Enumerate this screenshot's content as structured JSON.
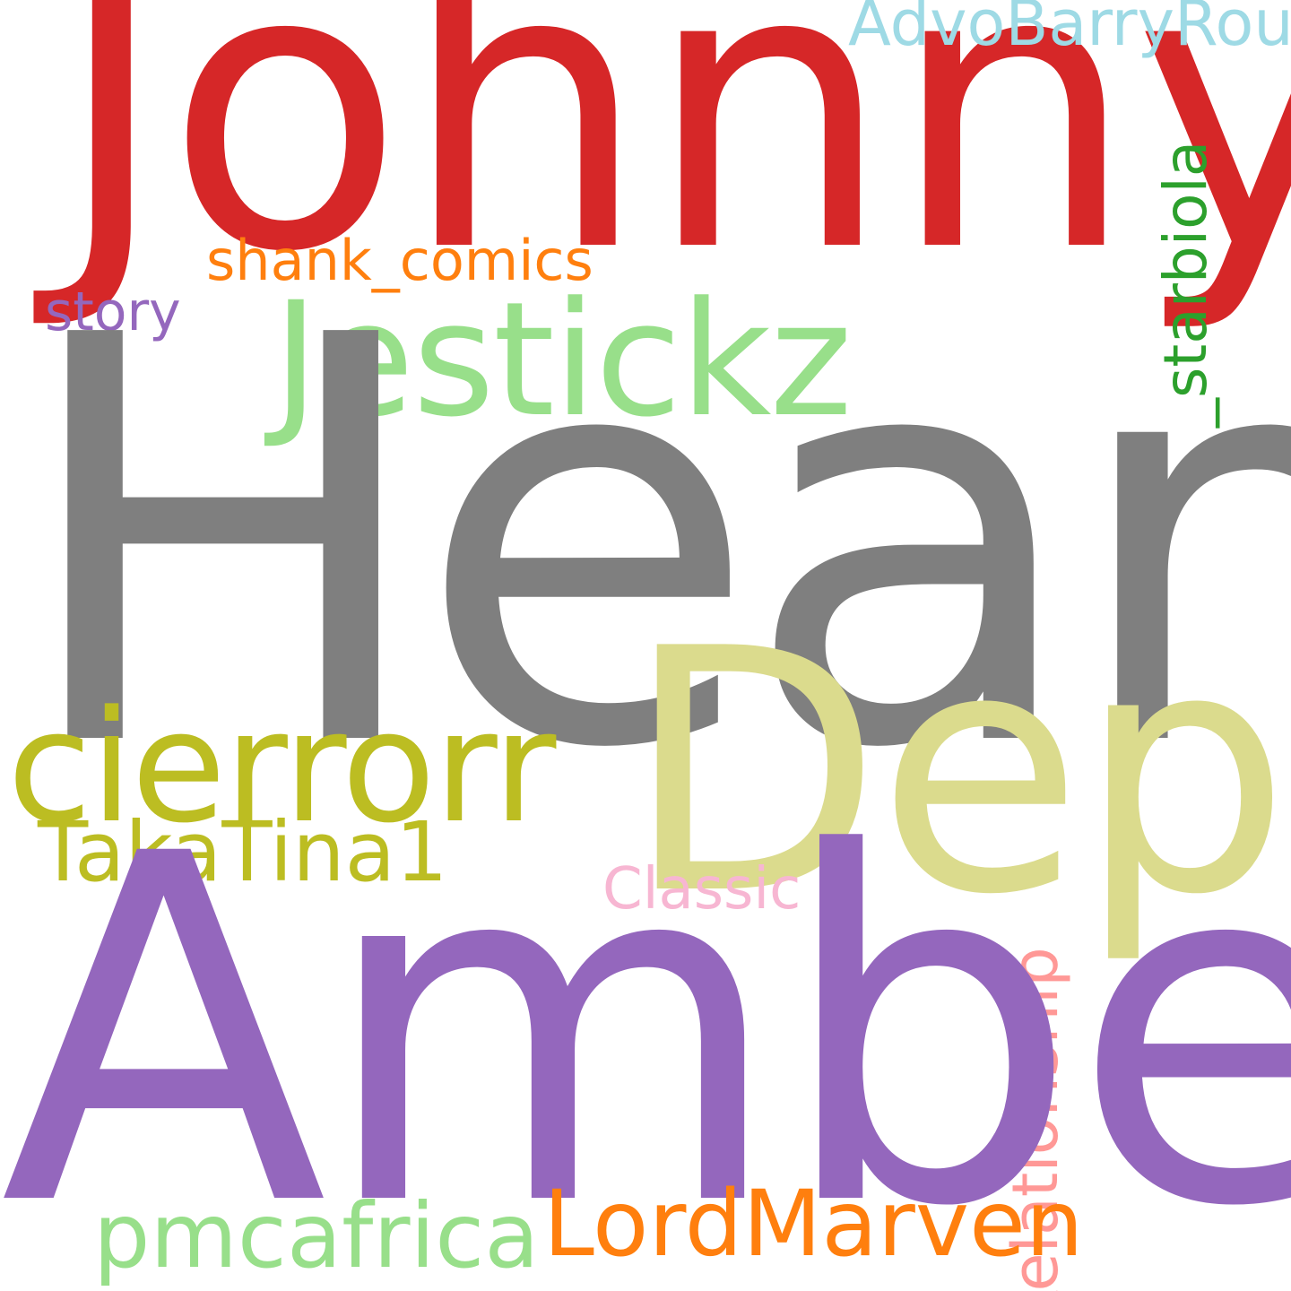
{
  "words": {
    "heard": {
      "text": "Heard",
      "color": "#7f7f7f"
    },
    "amber": {
      "text": "Amber",
      "color": "#9467bd"
    },
    "johnny": {
      "text": "Johnny",
      "color": "#d62728"
    },
    "depp": {
      "text": "Depp",
      "color": "#dbdb8d"
    },
    "cierrorr": {
      "text": "cierrorr",
      "color": "#bcbd22"
    },
    "jestickz": {
      "text": "Jestickz",
      "color": "#98df8a"
    },
    "lordmarven": {
      "text": "LordMarven",
      "color": "#ff7f0e"
    },
    "pmcafrica": {
      "text": "pmcafrica",
      "color": "#98df8a"
    },
    "takatina1": {
      "text": "TakaTina1",
      "color": "#bcbd22"
    },
    "advobarryroux": {
      "text": "AdvoBarryRoux",
      "color": "#9edae5"
    },
    "shank_comics": {
      "text": "shank_comics",
      "color": "#ff7f0e"
    },
    "story": {
      "text": "story",
      "color": "#9467bd"
    },
    "classic": {
      "text": "Classic",
      "color": "#f7b6d2"
    },
    "relationship": {
      "text": "Relationship",
      "color": "#ff9896"
    },
    "starbiola": {
      "text": "_starbiola",
      "color": "#2ca02c"
    }
  }
}
